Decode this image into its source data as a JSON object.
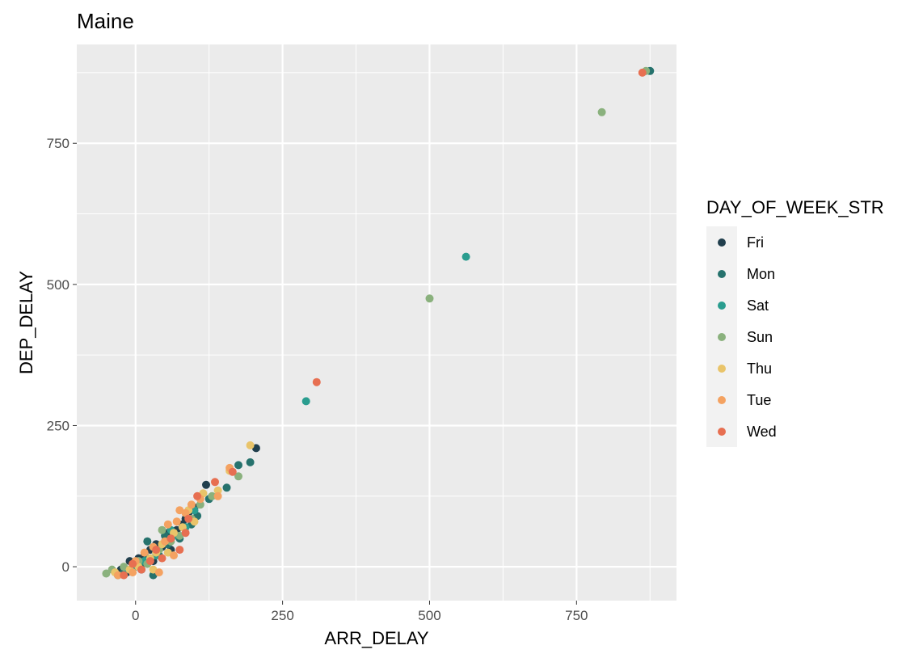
{
  "chart_data": {
    "type": "scatter",
    "title": "Maine",
    "xlabel": "ARR_DELAY",
    "ylabel": "DEP_DELAY",
    "xlim": [
      -100,
      920
    ],
    "ylim": [
      -60,
      925
    ],
    "x_ticks": [
      0,
      250,
      500,
      750
    ],
    "y_ticks": [
      0,
      250,
      500,
      750
    ],
    "grid": true,
    "legend": {
      "title": "DAY_OF_WEEK_STR",
      "position": "right"
    },
    "series": [
      {
        "name": "Fri",
        "color": "#213F4D",
        "points": [
          [
            -25,
            -5
          ],
          [
            -10,
            10
          ],
          [
            5,
            15
          ],
          [
            15,
            20
          ],
          [
            25,
            30
          ],
          [
            35,
            40
          ],
          [
            45,
            35
          ],
          [
            55,
            60
          ],
          [
            70,
            65
          ],
          [
            80,
            75
          ],
          [
            90,
            95
          ],
          [
            100,
            105
          ],
          [
            120,
            145
          ],
          [
            -15,
            -10
          ],
          [
            10,
            -5
          ],
          [
            30,
            10
          ],
          [
            60,
            30
          ],
          [
            85,
            85
          ],
          [
            205,
            210
          ],
          [
            0,
            5
          ]
        ]
      },
      {
        "name": "Mon",
        "color": "#26726D",
        "points": [
          [
            -20,
            -10
          ],
          [
            -5,
            -2
          ],
          [
            10,
            5
          ],
          [
            20,
            15
          ],
          [
            30,
            -15
          ],
          [
            40,
            20
          ],
          [
            55,
            40
          ],
          [
            75,
            50
          ],
          [
            95,
            75
          ],
          [
            105,
            90
          ],
          [
            125,
            120
          ],
          [
            155,
            140
          ],
          [
            175,
            180
          ],
          [
            195,
            185
          ],
          [
            20,
            45
          ],
          [
            50,
            55
          ],
          [
            875,
            878
          ]
        ]
      },
      {
        "name": "Sat",
        "color": "#2A9D8F",
        "points": [
          [
            -15,
            -5
          ],
          [
            0,
            0
          ],
          [
            15,
            10
          ],
          [
            35,
            20
          ],
          [
            50,
            45
          ],
          [
            65,
            55
          ],
          [
            85,
            70
          ],
          [
            100,
            100
          ],
          [
            -30,
            -15
          ],
          [
            60,
            65
          ],
          [
            290,
            293
          ],
          [
            562,
            549
          ]
        ]
      },
      {
        "name": "Sun",
        "color": "#8AB17D",
        "points": [
          [
            -50,
            -12
          ],
          [
            -40,
            -5
          ],
          [
            -20,
            0
          ],
          [
            5,
            10
          ],
          [
            20,
            5
          ],
          [
            40,
            30
          ],
          [
            60,
            45
          ],
          [
            75,
            55
          ],
          [
            95,
            85
          ],
          [
            110,
            110
          ],
          [
            130,
            125
          ],
          [
            175,
            160
          ],
          [
            45,
            65
          ],
          [
            500,
            475
          ],
          [
            793,
            805
          ],
          [
            868,
            878
          ]
        ]
      },
      {
        "name": "Thu",
        "color": "#E9C46A",
        "points": [
          [
            -35,
            -10
          ],
          [
            -10,
            -5
          ],
          [
            5,
            0
          ],
          [
            25,
            15
          ],
          [
            35,
            25
          ],
          [
            45,
            40
          ],
          [
            65,
            60
          ],
          [
            80,
            70
          ],
          [
            90,
            100
          ],
          [
            100,
            80
          ],
          [
            115,
            130
          ],
          [
            140,
            135
          ],
          [
            160,
            170
          ],
          [
            195,
            215
          ],
          [
            30,
            -5
          ],
          [
            55,
            25
          ]
        ]
      },
      {
        "name": "Tue",
        "color": "#F4A261",
        "points": [
          [
            -30,
            -15
          ],
          [
            -5,
            -10
          ],
          [
            0,
            10
          ],
          [
            15,
            25
          ],
          [
            30,
            35
          ],
          [
            50,
            45
          ],
          [
            55,
            75
          ],
          [
            70,
            80
          ],
          [
            85,
            95
          ],
          [
            95,
            110
          ],
          [
            110,
            120
          ],
          [
            140,
            125
          ],
          [
            160,
            175
          ],
          [
            40,
            -10
          ],
          [
            65,
            20
          ],
          [
            75,
            100
          ]
        ]
      },
      {
        "name": "Wed",
        "color": "#E76F51",
        "points": [
          [
            -20,
            -15
          ],
          [
            -5,
            5
          ],
          [
            10,
            -5
          ],
          [
            25,
            10
          ],
          [
            35,
            30
          ],
          [
            45,
            15
          ],
          [
            60,
            50
          ],
          [
            75,
            30
          ],
          [
            85,
            60
          ],
          [
            105,
            125
          ],
          [
            135,
            150
          ],
          [
            165,
            168
          ],
          [
            90,
            85
          ],
          [
            308,
            327
          ],
          [
            862,
            875
          ]
        ]
      }
    ]
  }
}
